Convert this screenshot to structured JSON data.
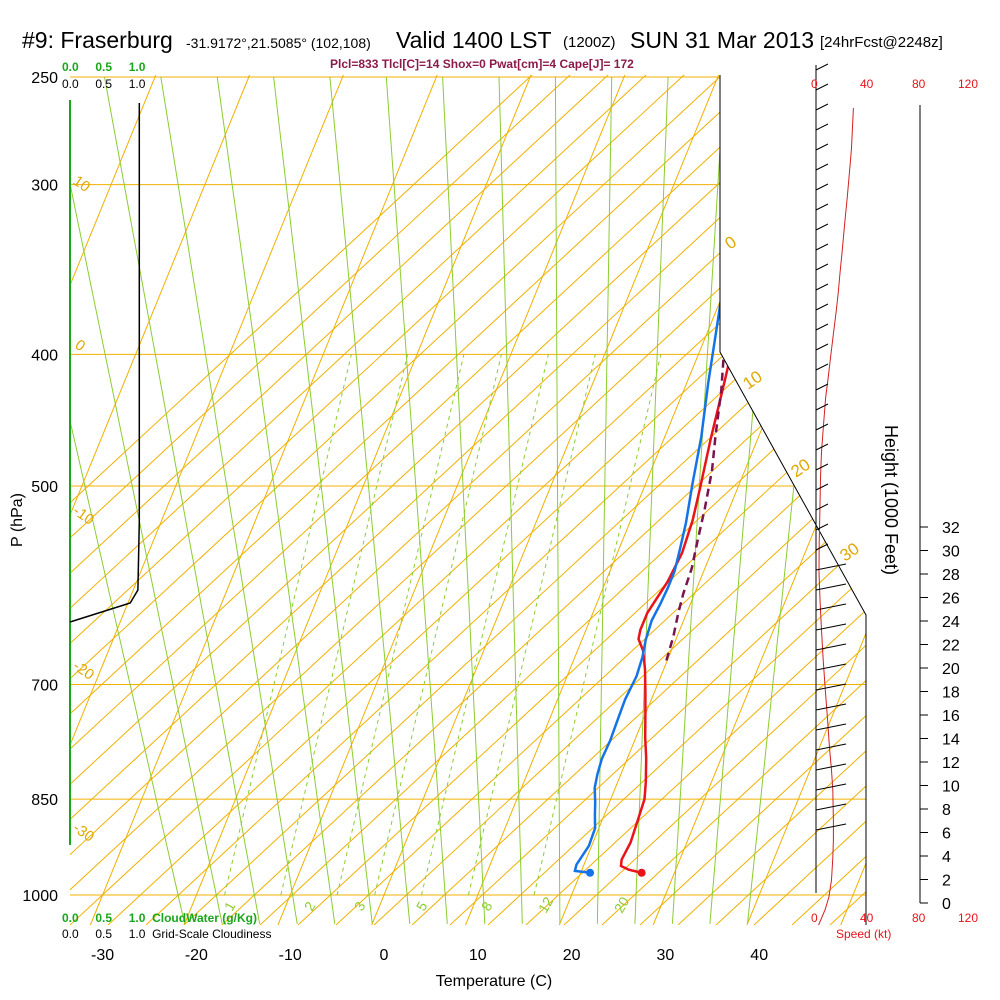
{
  "header": {
    "site": "#9: Fraserburg",
    "coords": "-31.9172°,21.5085° (102,108)",
    "valid": "Valid 1400 LST",
    "utc": "(1200Z)",
    "date": "SUN 31 Mar 2013",
    "forecast": "[24hrFcst@2248z]"
  },
  "stats_line": "Plcl=833 Tlcl[C]=14 Shox=0 Pwat[cm]=4 Cape[J]= 172",
  "cloud_scales": {
    "top_green": [
      "0.0",
      "0.5",
      "1.0"
    ],
    "top_black": [
      "0.0",
      "0.5",
      "1.0"
    ],
    "bottom_green": [
      "0.0",
      "0.5",
      "1.0"
    ],
    "bottom_black": [
      "0.0",
      "0.5",
      "1.0"
    ],
    "cloudwater_label": "CloudWater (g/Kg)",
    "cloudiness_label": "Grid-Scale Cloudiness"
  },
  "speed_axis": {
    "ticks": [
      "0",
      "40",
      "80",
      "120"
    ],
    "label": "Speed (kt)"
  },
  "chart_data": {
    "type": "line",
    "subtype": "skew-T log-P sounding",
    "xlabel": "Temperature (C)",
    "ylabel": "P (hPa)",
    "y2label": "Height (1000 Feet)",
    "x_ticks": [
      "-30",
      "-20",
      "-10",
      "0",
      "10",
      "20",
      "30",
      "40"
    ],
    "y_ticks": [
      "250",
      "300",
      "400",
      "500",
      "700",
      "850",
      "1000"
    ],
    "y2_ticks": [
      "0",
      "2",
      "4",
      "6",
      "8",
      "10",
      "12",
      "14",
      "16",
      "18",
      "20",
      "22",
      "24",
      "26",
      "28",
      "30",
      "32"
    ],
    "xlim": [
      -35,
      47
    ],
    "ylim_hpa": [
      1050,
      250
    ],
    "dry_adiabat_labels": [
      "10",
      "0",
      "-10",
      "-20",
      "-30"
    ],
    "isotherm_labels": [
      "0",
      "10",
      "20",
      "30"
    ],
    "mixing_ratio_labels": [
      "1",
      "2",
      "3",
      "5",
      "8",
      "12",
      "20"
    ],
    "series": [
      {
        "name": "Temperature",
        "color": "#e8131b",
        "points": [
          [
            26.5,
            963
          ],
          [
            25,
            958
          ],
          [
            24,
            952
          ],
          [
            23.8,
            942
          ],
          [
            24,
            915
          ],
          [
            23.8,
            880
          ],
          [
            23.6,
            850
          ],
          [
            23,
            826
          ],
          [
            22,
            793
          ],
          [
            21,
            766
          ],
          [
            20,
            736
          ],
          [
            19,
            708
          ],
          [
            18,
            682
          ],
          [
            17,
            661
          ],
          [
            16,
            648
          ],
          [
            15.8,
            638
          ],
          [
            15.8,
            620
          ],
          [
            16.6,
            588
          ],
          [
            16.9,
            560
          ],
          [
            16.6,
            530
          ],
          [
            16,
            502
          ],
          [
            15,
            462
          ],
          [
            14,
            420
          ],
          [
            12.3,
            360
          ],
          [
            10,
            304
          ],
          [
            7.8,
            268
          ],
          [
            5.2,
            230
          ],
          [
            3.5,
            205
          ]
        ]
      },
      {
        "name": "Dewpoint",
        "color": "#1473e6",
        "points": [
          [
            21,
            963
          ],
          [
            19.3,
            960
          ],
          [
            19.2,
            950
          ],
          [
            19.7,
            920
          ],
          [
            19.6,
            893
          ],
          [
            19,
            873
          ],
          [
            18.5,
            855
          ],
          [
            17.8,
            834
          ],
          [
            17.5,
            815
          ],
          [
            17.3,
            794
          ],
          [
            17.4,
            770
          ],
          [
            17.3,
            745
          ],
          [
            17.2,
            718
          ],
          [
            17.4,
            690
          ],
          [
            17.2,
            668
          ],
          [
            16.8,
            649
          ],
          [
            16.6,
            628
          ],
          [
            16.8,
            610
          ],
          [
            16.9,
            594
          ],
          [
            16.9,
            578
          ],
          [
            16.5,
            556
          ],
          [
            16,
            532
          ],
          [
            15,
            498
          ],
          [
            13.9,
            460
          ],
          [
            12.3,
            420
          ],
          [
            10.7,
            380
          ],
          [
            8.4,
            330
          ],
          [
            6,
            288
          ],
          [
            4.2,
            261
          ],
          [
            2.9,
            235
          ],
          [
            0.8,
            206
          ]
        ]
      },
      {
        "name": "Parcel",
        "color": "#7a1450",
        "dashed": true,
        "points": [
          [
            19.9,
            672
          ],
          [
            19.6,
            645
          ],
          [
            19.1,
            620
          ],
          [
            18.8,
            600
          ],
          [
            18.6,
            575
          ],
          [
            18,
            548
          ],
          [
            17.4,
            520
          ],
          [
            16.5,
            487
          ],
          [
            15.4,
            460
          ],
          [
            14,
            425
          ],
          [
            12.6,
            398
          ],
          [
            12.3,
            382
          ]
        ]
      },
      {
        "name": "Wind speed",
        "color": "#d22020",
        "points": [
          [
            2,
            925
          ],
          [
            7,
            910
          ],
          [
            10,
            897
          ],
          [
            12,
            880
          ],
          [
            13,
            858
          ],
          [
            13.5,
            840
          ],
          [
            13.5,
            820
          ],
          [
            13,
            790
          ],
          [
            12,
            770
          ],
          [
            10.5,
            748
          ],
          [
            9,
            720
          ],
          [
            7.2,
            690
          ],
          [
            5.6,
            660
          ],
          [
            4.3,
            630
          ],
          [
            3.1,
            600
          ],
          [
            2.3,
            572
          ],
          [
            2.5,
            543
          ],
          [
            3,
            510
          ],
          [
            3.5,
            478
          ],
          [
            4.3,
            452
          ],
          [
            5.8,
            425
          ],
          [
            7.5,
            397
          ],
          [
            9.2,
            380
          ],
          [
            11.3,
            357
          ],
          [
            13.6,
            333
          ],
          [
            15.5,
            313
          ],
          [
            17.2,
            293
          ],
          [
            18.7,
            272
          ],
          [
            20.2,
            252
          ],
          [
            21.6,
            232
          ],
          [
            23,
            213
          ],
          [
            24.2,
            198
          ],
          [
            25.3,
            182
          ],
          [
            26.4,
            165
          ],
          [
            27.5,
            148
          ],
          [
            29,
            108
          ]
        ]
      },
      {
        "name": "Cloudiness",
        "color": "#000000",
        "points": [
          [
            0.99,
            103
          ],
          [
            0.99,
            522
          ],
          [
            0.97,
            590
          ],
          [
            0.86,
            603
          ],
          [
            0.0,
            622
          ]
        ]
      }
    ]
  }
}
